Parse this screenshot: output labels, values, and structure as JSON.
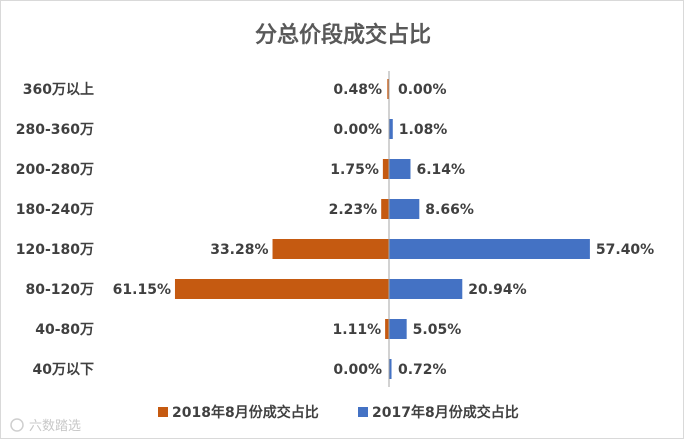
{
  "chart_data": {
    "type": "bar",
    "orientation": "horizontal-diverging",
    "title": "分总价段成交占比",
    "categories": [
      "360万以上",
      "280-360万",
      "200-280万",
      "180-240万",
      "120-180万",
      "80-120万",
      "40-80万",
      "40万以下"
    ],
    "series": [
      {
        "name": "2018年8月份成交占比",
        "side": "left",
        "color": "#C55A11",
        "values": [
          0.48,
          0.0,
          1.75,
          2.23,
          33.28,
          61.15,
          1.11,
          0.0
        ],
        "labels": [
          "0.48%",
          "0.00%",
          "1.75%",
          "2.23%",
          "33.28%",
          "61.15%",
          "1.11%",
          "0.00%"
        ]
      },
      {
        "name": "2017年8月份成交占比",
        "side": "right",
        "color": "#4472C4",
        "values": [
          0.0,
          1.08,
          6.14,
          8.66,
          57.4,
          20.94,
          5.05,
          0.72
        ],
        "labels": [
          "0.00%",
          "1.08%",
          "6.14%",
          "8.66%",
          "57.40%",
          "20.94%",
          "5.05%",
          "0.72%"
        ]
      }
    ],
    "legend_position": "bottom",
    "grid": false,
    "axis_color": "#A6A6A6"
  },
  "watermark": "六数踏选"
}
